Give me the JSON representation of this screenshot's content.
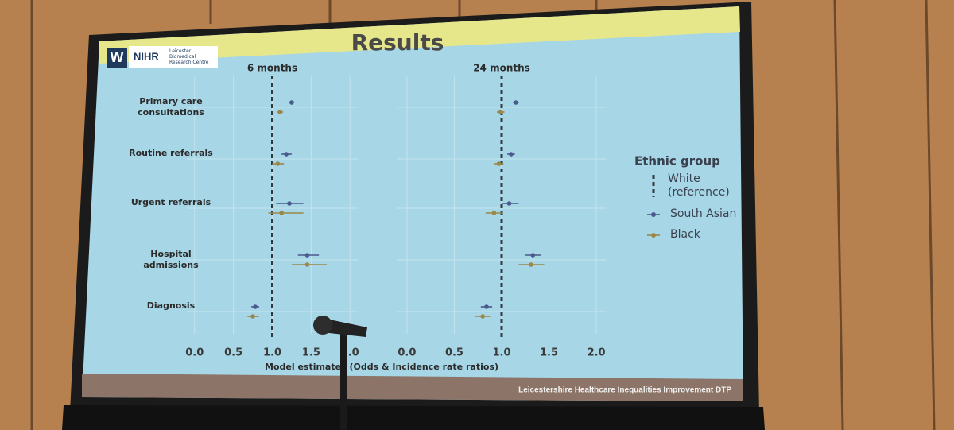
{
  "slide": {
    "title": "Results",
    "logo": "W",
    "org": "NIHR",
    "org_sub": "Leicester Biomedical Research Centre",
    "footer": "Leicestershire Healthcare Inequalities Improvement DTP"
  },
  "chart_data": [
    {
      "type": "forest",
      "title": "6 months",
      "categories": [
        "Primary care consultations",
        "Routine referrals",
        "Urgent referrals",
        "Hospital admissions",
        "Diagnosis"
      ],
      "series": [
        {
          "name": "South Asian",
          "color": "#4b5a8c",
          "values": [
            1.25,
            1.18,
            1.22,
            1.45,
            0.78
          ],
          "lower": [
            1.22,
            1.12,
            1.05,
            1.33,
            0.73
          ],
          "upper": [
            1.28,
            1.25,
            1.4,
            1.6,
            0.83
          ]
        },
        {
          "name": "Black",
          "color": "#9c8749",
          "values": [
            1.1,
            1.07,
            1.12,
            1.45,
            0.75
          ],
          "lower": [
            1.06,
            1.0,
            0.95,
            1.25,
            0.68
          ],
          "upper": [
            1.14,
            1.15,
            1.4,
            1.7,
            0.83
          ]
        }
      ],
      "reference": 1,
      "reference_name": "White (reference)",
      "legend_title": "Ethnic group",
      "xlabel": "Model estimates (Odds & Incidence rate ratios)",
      "xlim": [
        -0.1,
        2.1
      ],
      "xticks": [
        {
          "value": 0,
          "label": "0.0"
        },
        0.5,
        {
          "value": 1,
          "label": "1.0"
        },
        1.5,
        {
          "value": 2,
          "label": "2.0"
        }
      ],
      "grid": true
    },
    {
      "type": "forest",
      "title": "24 months",
      "series": [
        {
          "color": "#4b5a8c",
          "values": [
            1.15,
            1.1,
            1.08,
            1.33,
            0.84
          ],
          "lower": [
            1.12,
            1.06,
            1.0,
            1.25,
            0.78
          ],
          "upper": [
            1.18,
            1.14,
            1.18,
            1.42,
            0.9
          ]
        },
        {
          "color": "#9c8749",
          "values": [
            0.99,
            0.97,
            0.92,
            1.31,
            0.8
          ],
          "lower": [
            0.95,
            0.92,
            0.83,
            1.18,
            0.72
          ],
          "upper": [
            1.03,
            1.02,
            1.0,
            1.45,
            0.88
          ]
        }
      ],
      "reference": 1,
      "xlim": [
        -0.1,
        2.1
      ],
      "xticks": [
        {
          "value": 0,
          "label": "0.0"
        },
        0.5,
        {
          "value": 1,
          "label": "1.0"
        },
        1.5,
        {
          "value": 2,
          "label": "2.0"
        }
      ],
      "grid": true
    }
  ]
}
